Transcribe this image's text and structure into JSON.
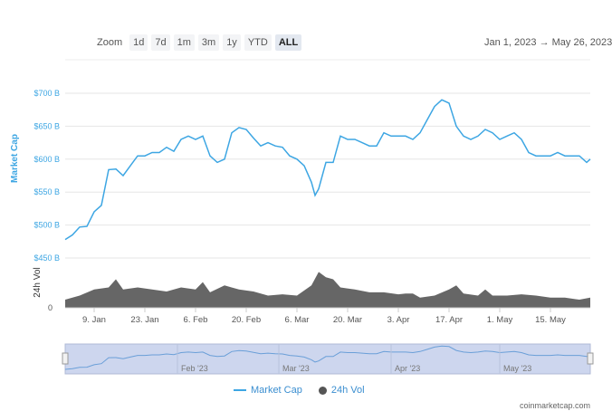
{
  "zoom": {
    "label": "Zoom",
    "buttons": [
      "1d",
      "7d",
      "1m",
      "3m",
      "1y",
      "YTD",
      "ALL"
    ],
    "active": "ALL"
  },
  "range": {
    "from": "Jan 1, 2023",
    "arrow": "→",
    "to": "May 26, 2023"
  },
  "legend": {
    "market_cap": "Market Cap",
    "vol": "24h Vol"
  },
  "credit": "coinmarketcap.com",
  "colors": {
    "line": "#3da6e3",
    "volume": "#666666",
    "navigator": "#cdd6ee"
  },
  "chart_data": {
    "type": "line",
    "ylabel": "Market Cap",
    "y2label": "24h Vol",
    "yticks": [
      "$450 B",
      "$500 B",
      "$550 B",
      "$600 B",
      "$650 B",
      "$700 B"
    ],
    "ylim": [
      450,
      700
    ],
    "xticks": [
      "9. Jan",
      "23. Jan",
      "6. Feb",
      "20. Feb",
      "6. Mar",
      "20. Mar",
      "3. Apr",
      "17. Apr",
      "1. May",
      "15. May"
    ],
    "xlim": [
      "2023-01-01",
      "2023-05-26"
    ],
    "vol_ticks": [
      "0"
    ],
    "navigator_labels": [
      "Feb '23",
      "Mar '23",
      "Apr '23",
      "May '23"
    ],
    "series": [
      {
        "name": "Market Cap",
        "unit": "$B",
        "points": [
          [
            "2023-01-01",
            478
          ],
          [
            "2023-01-03",
            485
          ],
          [
            "2023-01-05",
            497
          ],
          [
            "2023-01-07",
            498
          ],
          [
            "2023-01-09",
            520
          ],
          [
            "2023-01-11",
            530
          ],
          [
            "2023-01-13",
            584
          ],
          [
            "2023-01-15",
            585
          ],
          [
            "2023-01-17",
            575
          ],
          [
            "2023-01-19",
            590
          ],
          [
            "2023-01-21",
            605
          ],
          [
            "2023-01-23",
            605
          ],
          [
            "2023-01-25",
            610
          ],
          [
            "2023-01-27",
            610
          ],
          [
            "2023-01-29",
            618
          ],
          [
            "2023-01-31",
            612
          ],
          [
            "2023-02-02",
            630
          ],
          [
            "2023-02-04",
            635
          ],
          [
            "2023-02-06",
            630
          ],
          [
            "2023-02-08",
            635
          ],
          [
            "2023-02-10",
            605
          ],
          [
            "2023-02-12",
            595
          ],
          [
            "2023-02-14",
            600
          ],
          [
            "2023-02-16",
            640
          ],
          [
            "2023-02-18",
            648
          ],
          [
            "2023-02-20",
            645
          ],
          [
            "2023-02-22",
            632
          ],
          [
            "2023-02-24",
            620
          ],
          [
            "2023-02-26",
            625
          ],
          [
            "2023-02-28",
            620
          ],
          [
            "2023-03-02",
            618
          ],
          [
            "2023-03-04",
            605
          ],
          [
            "2023-03-06",
            600
          ],
          [
            "2023-03-08",
            590
          ],
          [
            "2023-03-10",
            565
          ],
          [
            "2023-03-11",
            545
          ],
          [
            "2023-03-12",
            555
          ],
          [
            "2023-03-14",
            595
          ],
          [
            "2023-03-16",
            595
          ],
          [
            "2023-03-18",
            635
          ],
          [
            "2023-03-20",
            630
          ],
          [
            "2023-03-22",
            630
          ],
          [
            "2023-03-24",
            625
          ],
          [
            "2023-03-26",
            620
          ],
          [
            "2023-03-28",
            620
          ],
          [
            "2023-03-30",
            640
          ],
          [
            "2023-04-01",
            635
          ],
          [
            "2023-04-03",
            635
          ],
          [
            "2023-04-05",
            635
          ],
          [
            "2023-04-07",
            630
          ],
          [
            "2023-04-09",
            640
          ],
          [
            "2023-04-11",
            660
          ],
          [
            "2023-04-13",
            680
          ],
          [
            "2023-04-15",
            690
          ],
          [
            "2023-04-17",
            685
          ],
          [
            "2023-04-19",
            650
          ],
          [
            "2023-04-21",
            635
          ],
          [
            "2023-04-23",
            630
          ],
          [
            "2023-04-25",
            635
          ],
          [
            "2023-04-27",
            645
          ],
          [
            "2023-04-29",
            640
          ],
          [
            "2023-05-01",
            630
          ],
          [
            "2023-05-03",
            635
          ],
          [
            "2023-05-05",
            640
          ],
          [
            "2023-05-07",
            630
          ],
          [
            "2023-05-09",
            610
          ],
          [
            "2023-05-11",
            605
          ],
          [
            "2023-05-13",
            605
          ],
          [
            "2023-05-15",
            605
          ],
          [
            "2023-05-17",
            610
          ],
          [
            "2023-05-19",
            605
          ],
          [
            "2023-05-21",
            605
          ],
          [
            "2023-05-23",
            605
          ],
          [
            "2023-05-25",
            595
          ],
          [
            "2023-05-26",
            600
          ]
        ]
      },
      {
        "name": "24h Vol",
        "unit": "relative",
        "points": [
          [
            "2023-01-01",
            20
          ],
          [
            "2023-01-05",
            30
          ],
          [
            "2023-01-09",
            45
          ],
          [
            "2023-01-13",
            50
          ],
          [
            "2023-01-15",
            70
          ],
          [
            "2023-01-17",
            45
          ],
          [
            "2023-01-21",
            50
          ],
          [
            "2023-01-25",
            45
          ],
          [
            "2023-01-29",
            40
          ],
          [
            "2023-02-02",
            50
          ],
          [
            "2023-02-06",
            45
          ],
          [
            "2023-02-08",
            63
          ],
          [
            "2023-02-10",
            38
          ],
          [
            "2023-02-14",
            55
          ],
          [
            "2023-02-18",
            45
          ],
          [
            "2023-02-22",
            40
          ],
          [
            "2023-02-26",
            30
          ],
          [
            "2023-03-02",
            33
          ],
          [
            "2023-03-06",
            30
          ],
          [
            "2023-03-10",
            55
          ],
          [
            "2023-03-12",
            88
          ],
          [
            "2023-03-14",
            75
          ],
          [
            "2023-03-16",
            70
          ],
          [
            "2023-03-18",
            50
          ],
          [
            "2023-03-22",
            45
          ],
          [
            "2023-03-26",
            38
          ],
          [
            "2023-03-30",
            38
          ],
          [
            "2023-04-03",
            33
          ],
          [
            "2023-04-05",
            35
          ],
          [
            "2023-04-07",
            35
          ],
          [
            "2023-04-09",
            25
          ],
          [
            "2023-04-13",
            30
          ],
          [
            "2023-04-17",
            45
          ],
          [
            "2023-04-19",
            55
          ],
          [
            "2023-04-21",
            35
          ],
          [
            "2023-04-25",
            30
          ],
          [
            "2023-04-27",
            45
          ],
          [
            "2023-04-29",
            30
          ],
          [
            "2023-05-03",
            30
          ],
          [
            "2023-05-07",
            33
          ],
          [
            "2023-05-11",
            30
          ],
          [
            "2023-05-15",
            25
          ],
          [
            "2023-05-19",
            25
          ],
          [
            "2023-05-23",
            20
          ],
          [
            "2023-05-26",
            25
          ]
        ]
      }
    ]
  }
}
